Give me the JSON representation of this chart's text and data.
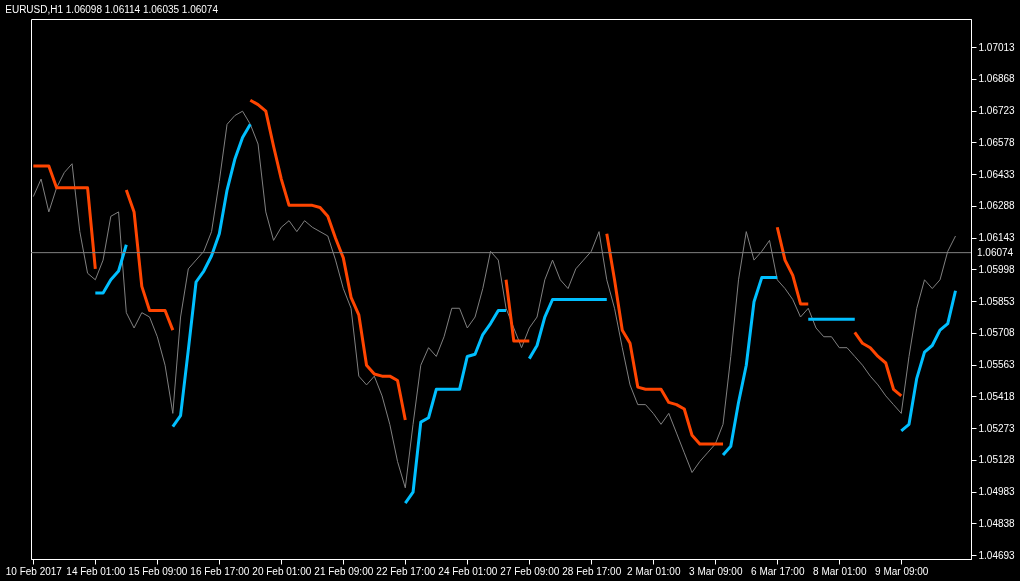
{
  "chart_data": {
    "type": "line",
    "title": "EURUSD,H1  1.06098 1.06114 1.06035 1.06074",
    "grid": false,
    "categories": [
      "10 Feb 2017",
      null,
      null,
      null,
      null,
      null,
      null,
      null,
      "14 Feb 01:00",
      null,
      null,
      null,
      null,
      null,
      null,
      null,
      "15 Feb 09:00",
      null,
      null,
      null,
      null,
      null,
      null,
      null,
      "16 Feb 17:00",
      null,
      null,
      null,
      null,
      null,
      null,
      null,
      "20 Feb 01:00",
      null,
      null,
      null,
      null,
      null,
      null,
      null,
      "21 Feb 09:00",
      null,
      null,
      null,
      null,
      null,
      null,
      null,
      "22 Feb 17:00",
      null,
      null,
      null,
      null,
      null,
      null,
      null,
      "24 Feb 01:00",
      null,
      null,
      null,
      null,
      null,
      null,
      null,
      "27 Feb 09:00",
      null,
      null,
      null,
      null,
      null,
      null,
      null,
      "28 Feb 17:00",
      null,
      null,
      null,
      null,
      null,
      null,
      null,
      "2 Mar 01:00",
      null,
      null,
      null,
      null,
      null,
      null,
      null,
      "3 Mar 09:00",
      null,
      null,
      null,
      null,
      null,
      null,
      null,
      "6 Mar 17:00",
      null,
      null,
      null,
      null,
      null,
      null,
      null,
      "8 Mar 01:00",
      null,
      null,
      null,
      null,
      null,
      null,
      null,
      "9 Mar 09:00",
      null,
      null,
      null,
      null,
      null,
      null,
      null,
      null,
      null
    ],
    "ylim": [
      1.04675,
      1.07141
    ],
    "yticks": [
      1.04693,
      1.04838,
      1.04983,
      1.05128,
      1.05273,
      1.05418,
      1.05563,
      1.05708,
      1.05853,
      1.05998,
      1.06143,
      1.06288,
      1.06433,
      1.06578,
      1.06723,
      1.06868,
      1.07013
    ],
    "ref_lines": [
      {
        "axis": "y",
        "value": 1.06074,
        "label": "1.06074",
        "color": "#808080"
      }
    ],
    "series": [
      {
        "color": "#808080",
        "values": [
          1.0633,
          1.0641,
          1.0626,
          1.0637,
          1.0644,
          1.0648,
          1.0617,
          1.0598,
          1.0595,
          1.0604,
          1.0624,
          1.0626,
          1.058,
          1.0573,
          1.058,
          1.0578,
          1.0569,
          1.0556,
          1.0534,
          1.0578,
          1.06,
          1.0604,
          1.0608,
          1.0617,
          1.064,
          1.0666,
          1.067,
          1.0672,
          1.0666,
          1.0657,
          1.0626,
          1.0613,
          1.0619,
          1.0622,
          1.0617,
          1.0622,
          1.0619,
          1.0617,
          1.0615,
          1.0604,
          1.0591,
          1.0582,
          1.0551,
          1.0547,
          1.0551,
          1.0542,
          1.0529,
          1.0512,
          1.05,
          1.0529,
          1.0556,
          1.0564,
          1.056,
          1.0569,
          1.0582,
          1.0582,
          1.0573,
          1.0578,
          1.0591,
          1.0608,
          1.0604,
          1.0582,
          1.0573,
          1.0564,
          1.0573,
          1.0578,
          1.0595,
          1.0604,
          1.0595,
          1.0591,
          1.06,
          1.0604,
          1.0608,
          1.0617,
          1.0595,
          1.0582,
          1.0564,
          1.0547,
          1.0538,
          1.0538,
          1.0534,
          1.0529,
          1.0534,
          1.0525,
          1.0516,
          1.0507,
          1.0512,
          1.0516,
          1.052,
          1.0529,
          1.056,
          1.0595,
          1.0617,
          1.0604,
          1.0608,
          1.0613,
          1.0595,
          1.0591,
          1.0586,
          1.0578,
          1.0582,
          1.0573,
          1.0569,
          1.0569,
          1.0564,
          1.0564,
          1.056,
          1.0556,
          1.0551,
          1.0547,
          1.0542,
          1.0538,
          1.0534,
          1.056,
          1.0582,
          1.0595,
          1.0591,
          1.0595,
          1.0608,
          1.0615,
          null,
          null
        ]
      },
      {
        "color": "#ff4500",
        "values": [
          1.0647,
          1.0647,
          1.0647,
          1.0637,
          1.0637,
          1.0637,
          1.0637,
          1.0637,
          1.06,
          null,
          null,
          null,
          1.0636,
          1.0626,
          1.0592,
          1.0581,
          1.0581,
          1.0581,
          1.0572,
          null,
          null,
          null,
          null,
          null,
          null,
          null,
          null,
          null,
          1.0677,
          1.0675,
          1.0672,
          1.0656,
          1.0641,
          1.0629,
          1.0629,
          1.0629,
          1.0629,
          1.0628,
          1.0624,
          1.0614,
          1.0605,
          1.0587,
          1.0579,
          1.0556,
          1.0552,
          1.0551,
          1.0551,
          1.0549,
          1.0531,
          null,
          null,
          null,
          null,
          null,
          null,
          null,
          null,
          null,
          null,
          null,
          null,
          1.0595,
          1.0567,
          1.0567,
          1.0567,
          null,
          null,
          null,
          null,
          null,
          null,
          null,
          null,
          null,
          1.0616,
          1.0595,
          1.0572,
          1.0566,
          1.0546,
          1.0545,
          1.0545,
          1.0545,
          1.0539,
          1.0538,
          1.0536,
          1.0524,
          1.052,
          1.052,
          1.052,
          1.052,
          null,
          null,
          null,
          null,
          null,
          null,
          1.0619,
          1.0604,
          1.0597,
          1.0584,
          1.0584,
          null,
          null,
          null,
          null,
          null,
          1.0571,
          1.0566,
          1.0564,
          1.056,
          1.0557,
          1.0545,
          1.0542,
          null,
          null,
          null,
          null,
          null,
          null,
          null,
          null,
          null
        ]
      },
      {
        "color": "#00bfff",
        "values": [
          null,
          null,
          null,
          null,
          null,
          null,
          null,
          null,
          1.0589,
          1.0589,
          1.0595,
          1.0599,
          1.0611,
          null,
          null,
          null,
          null,
          null,
          1.0528,
          1.0533,
          1.0563,
          1.0594,
          1.0599,
          1.0606,
          1.0616,
          1.0636,
          1.065,
          1.066,
          1.0666,
          null,
          null,
          null,
          null,
          null,
          null,
          null,
          null,
          null,
          null,
          null,
          null,
          null,
          null,
          null,
          null,
          null,
          null,
          null,
          1.0493,
          1.0498,
          1.053,
          1.0532,
          1.0545,
          1.0545,
          1.0545,
          1.0545,
          1.056,
          1.0561,
          1.057,
          1.0575,
          1.0581,
          1.0581,
          null,
          null,
          1.0559,
          1.0565,
          1.0578,
          1.0586,
          1.0586,
          1.0586,
          1.0586,
          1.0586,
          1.0586,
          1.0586,
          1.0586,
          null,
          null,
          null,
          null,
          null,
          null,
          null,
          null,
          null,
          null,
          null,
          null,
          null,
          null,
          1.0515,
          1.0519,
          1.0539,
          1.0556,
          1.0585,
          1.0596,
          1.0596,
          1.0596,
          null,
          null,
          null,
          1.0577,
          1.0577,
          1.0577,
          1.0577,
          1.0577,
          1.0577,
          1.0577,
          null,
          null,
          null,
          null,
          null,
          1.0526,
          1.0529,
          1.055,
          1.0562,
          1.0565,
          1.0572,
          1.0575,
          1.059,
          null,
          null
        ]
      }
    ]
  }
}
